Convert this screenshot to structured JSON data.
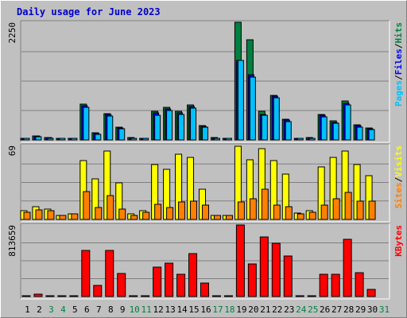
{
  "chart_data": {
    "type": "bar",
    "title": "Daily usage for June 2023",
    "categories": [
      "1",
      "2",
      "3",
      "4",
      "5",
      "6",
      "7",
      "8",
      "9",
      "10",
      "11",
      "12",
      "13",
      "14",
      "15",
      "16",
      "17",
      "18",
      "19",
      "20",
      "21",
      "22",
      "23",
      "24",
      "25",
      "26",
      "27",
      "28",
      "29",
      "30",
      "31"
    ],
    "weekend_days": [
      "3",
      "4",
      "10",
      "11",
      "17",
      "18",
      "24",
      "25",
      "31"
    ],
    "panels": [
      {
        "max_label": "2250",
        "ylim": [
          0,
          2250
        ],
        "legend": [
          "Pages",
          "/",
          "Files",
          "/",
          "Hits"
        ],
        "series": [
          {
            "name": "Hits",
            "color": "#008040",
            "values": [
              35,
              80,
              45,
              15,
              15,
              690,
              130,
              500,
              240,
              40,
              30,
              540,
              630,
              540,
              670,
              280,
              40,
              25,
              2250,
              1920,
              540,
              850,
              400,
              25,
              40,
              490,
              360,
              750,
              290,
              230,
              0
            ]
          },
          {
            "name": "Files",
            "color": "#0000ff",
            "values": [
              30,
              70,
              40,
              12,
              12,
              660,
              120,
              480,
              230,
              35,
              25,
              510,
              600,
              510,
              640,
              265,
              35,
              20,
              1520,
              1250,
              490,
              830,
              380,
              20,
              35,
              465,
              340,
              700,
              270,
              210,
              0
            ]
          },
          {
            "name": "Pages",
            "color": "#00c0ff",
            "values": [
              25,
              55,
              30,
              10,
              10,
              620,
              110,
              460,
              210,
              30,
              20,
              470,
              570,
              480,
              610,
              250,
              30,
              15,
              1520,
              1200,
              470,
              810,
              350,
              15,
              30,
              440,
              320,
              670,
              250,
              200,
              0
            ]
          }
        ]
      },
      {
        "max_label": "69",
        "ylim": [
          0,
          69
        ],
        "legend": [
          "Sites",
          "/",
          "Visits"
        ],
        "series": [
          {
            "name": "Visits",
            "color": "#ffff00",
            "values": [
              8,
              12,
              10,
              4,
              5,
              55,
              38,
              64,
              34,
              5,
              8,
              51,
              47,
              61,
              58,
              28,
              4,
              4,
              68,
              56,
              66,
              55,
              42,
              6,
              8,
              49,
              58,
              64,
              51,
              41,
              0
            ]
          },
          {
            "name": "Sites",
            "color": "#ff8000",
            "values": [
              7,
              9,
              8,
              4,
              5,
              26,
              11,
              22,
              10,
              4,
              7,
              14,
              11,
              16,
              17,
              13,
              4,
              4,
              16,
              19,
              28,
              13,
              12,
              5,
              7,
              13,
              19,
              25,
              17,
              17,
              0
            ]
          }
        ]
      },
      {
        "max_label": "813659",
        "ylim": [
          0,
          813659
        ],
        "legend": [
          "KBytes"
        ],
        "series": [
          {
            "name": "KBytes",
            "color": "#ff0000",
            "values": [
              0,
              25000,
              0,
              0,
              0,
              520000,
              130000,
              520000,
              260000,
              0,
              0,
              330000,
              380000,
              250000,
              490000,
              150000,
              0,
              0,
              813659,
              370000,
              680000,
              610000,
              460000,
              0,
              0,
              250000,
              250000,
              650000,
              270000,
              80000,
              0
            ]
          }
        ]
      }
    ],
    "colors": {
      "background": "#c0c0c0",
      "gridline": "#808080",
      "title": "#0000cc",
      "tick_weekday": "#000000",
      "tick_weekend": "#008040",
      "bar_outline": "#000000"
    }
  }
}
